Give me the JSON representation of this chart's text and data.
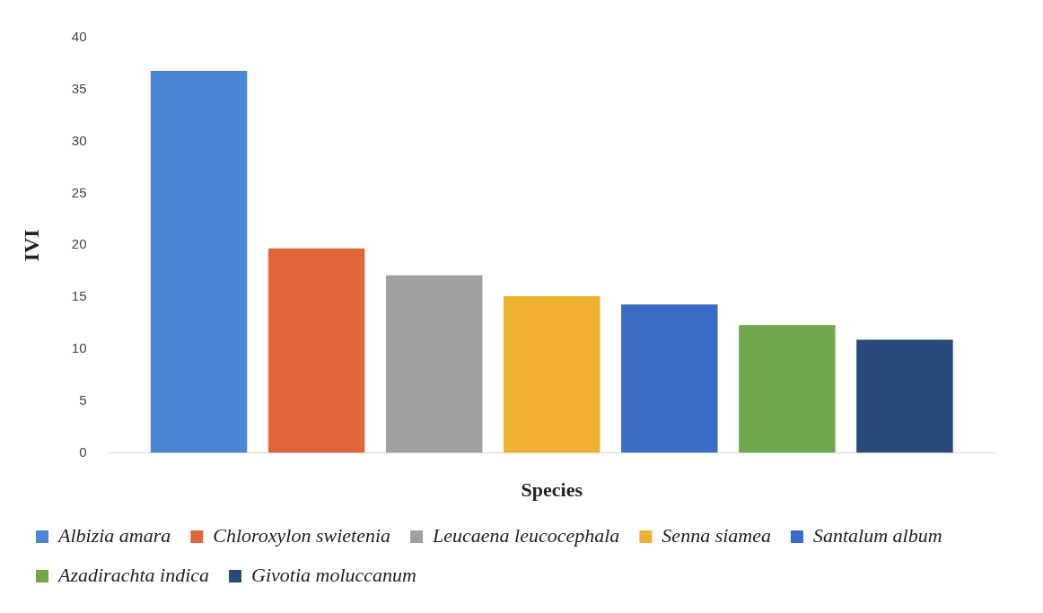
{
  "chart_data": {
    "type": "bar",
    "xlabel": "Species",
    "ylabel": "IVI",
    "categories": [
      null
    ],
    "series": [
      {
        "name": "Albizia amara",
        "color": "#4a86d4",
        "values": [
          36.8
        ]
      },
      {
        "name": "Chloroxylon swietenia",
        "color": "#e0663a",
        "values": [
          19.7
        ]
      },
      {
        "name": "Leucaena leucocephala",
        "color": "#a0a0a0",
        "values": [
          17.1
        ]
      },
      {
        "name": "Senna siamea",
        "color": "#f0b030",
        "values": [
          15.1
        ]
      },
      {
        "name": "Santalum album",
        "color": "#3a6cc8",
        "values": [
          14.3
        ]
      },
      {
        "name": "Azadirachta indica",
        "color": "#6fa84a",
        "values": [
          12.3
        ]
      },
      {
        "name": "Givotia moluccanum",
        "color": "#264a7a",
        "values": [
          10.9
        ]
      }
    ],
    "ylim": [
      0,
      40
    ],
    "yticks": [
      0,
      5,
      10,
      15,
      20,
      25,
      30,
      35,
      40
    ],
    "grid": false,
    "legend": "bottom"
  }
}
